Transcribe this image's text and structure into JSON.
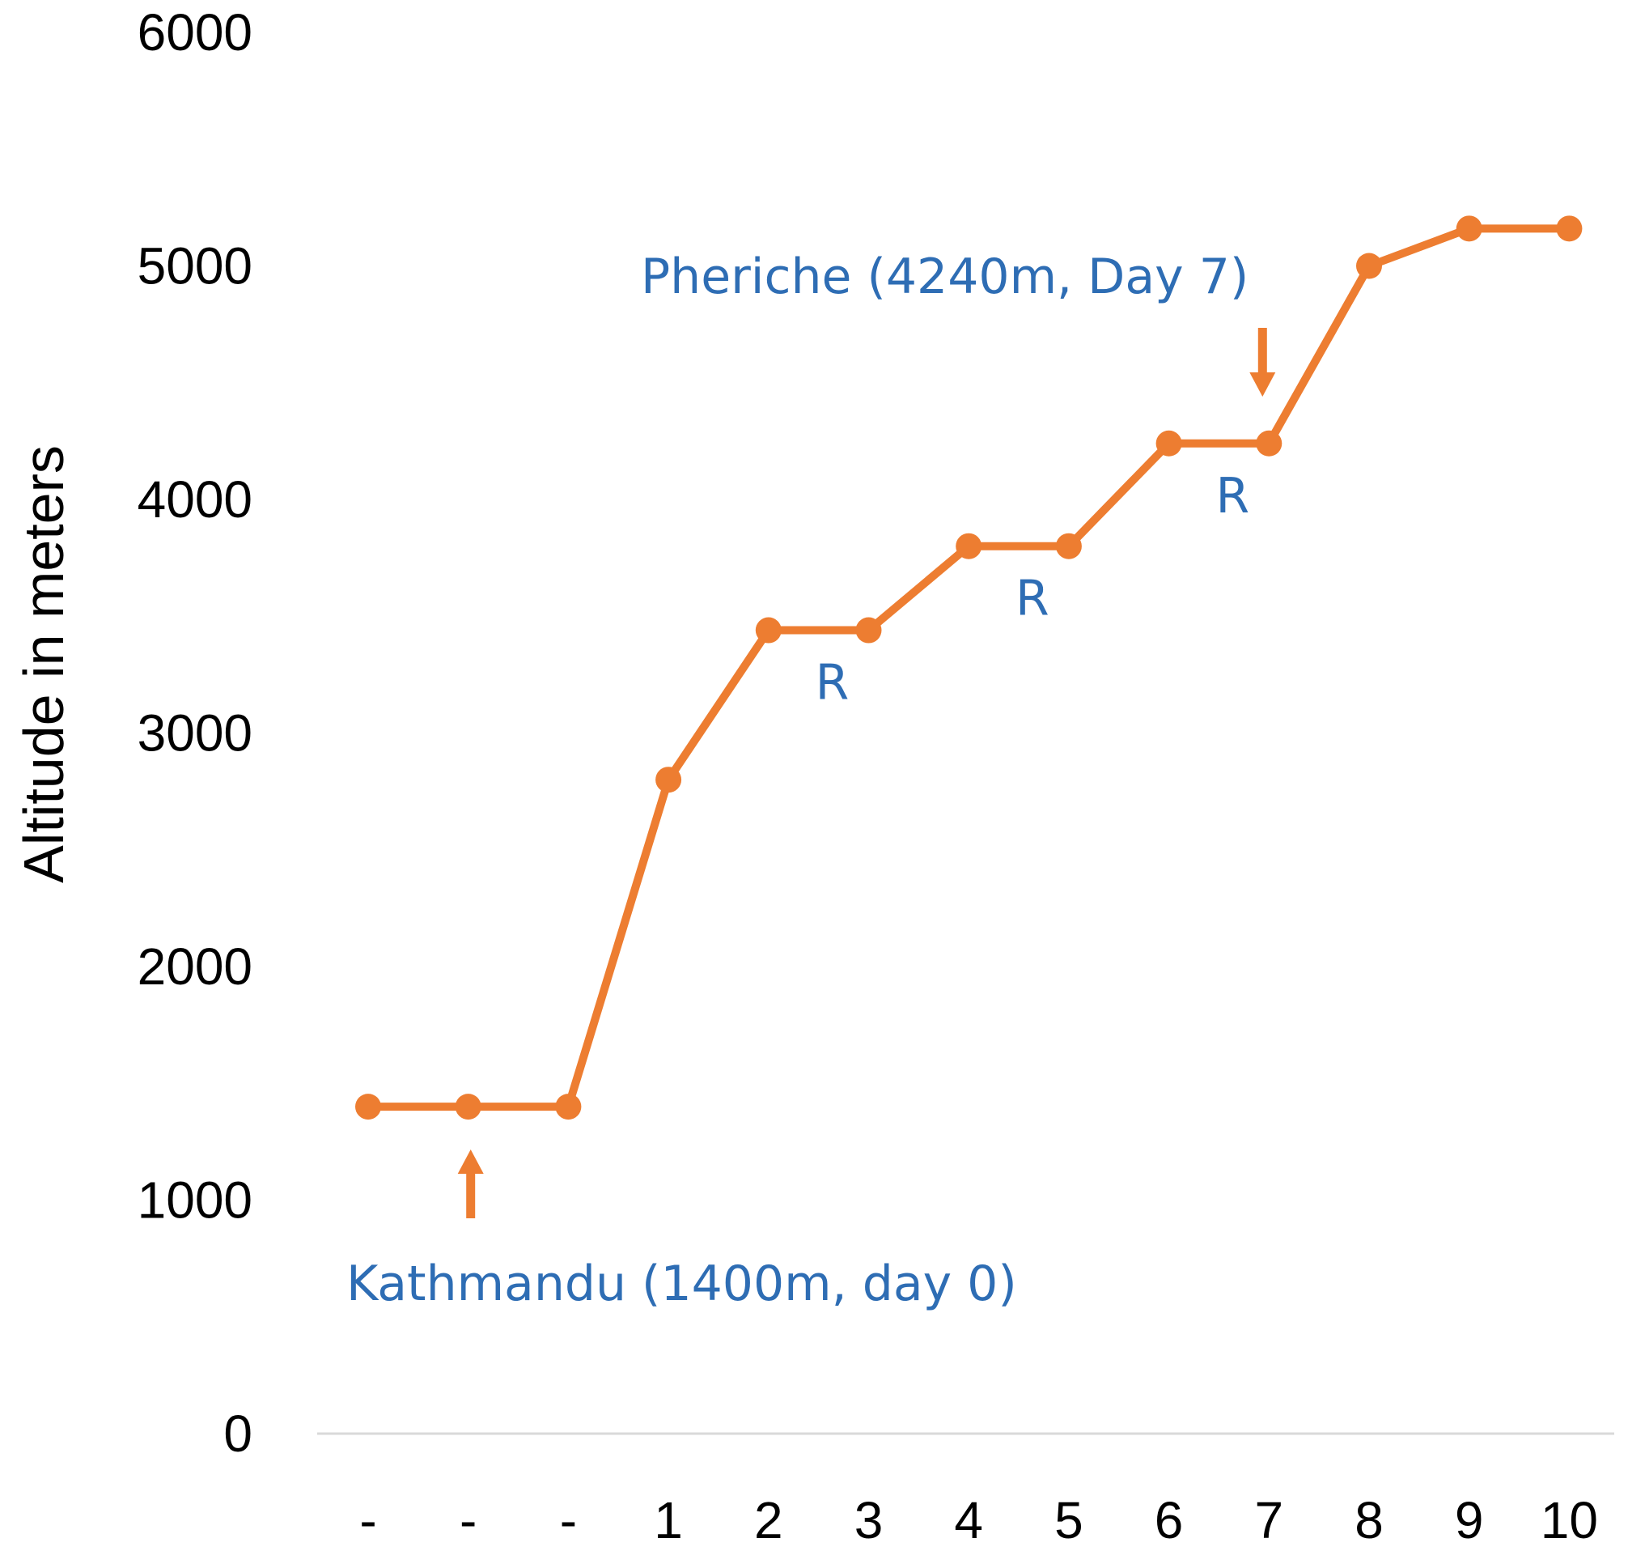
{
  "chart_data": {
    "type": "line",
    "title": "",
    "xlabel": "",
    "ylabel": "Altitude in meters",
    "categories": [
      "-",
      "-",
      "-",
      "1",
      "2",
      "3",
      "4",
      "5",
      "6",
      "7",
      "8",
      "9",
      "10"
    ],
    "series": [
      {
        "values": [
          1400,
          1400,
          1400,
          2800,
          3440,
          3440,
          3800,
          3800,
          4240,
          4240,
          5000,
          5160,
          5160
        ]
      }
    ],
    "ylim": [
      0,
      6000
    ],
    "yticks": [
      "0",
      "1000",
      "2000",
      "3000",
      "4000",
      "5000",
      "6000"
    ],
    "grid": false,
    "legend": "none",
    "annotations": [
      {
        "text": "Kathmandu (1400m, day 0)",
        "arrow_category_index": 1,
        "arrow_direction": "up"
      },
      {
        "text": "Pheriche (4240m, Day 7)",
        "arrow_category_index": 9,
        "arrow_direction": "down"
      },
      {
        "text": "R",
        "category_index": 5
      },
      {
        "text": "R",
        "category_index": 7
      },
      {
        "text": "R",
        "category_index": 9
      }
    ],
    "colors": {
      "line": "#ED7D31",
      "annotation_text": "#2E6DB4",
      "arrow": "#ED7D31",
      "axis_line": "#D9D9D9"
    }
  }
}
